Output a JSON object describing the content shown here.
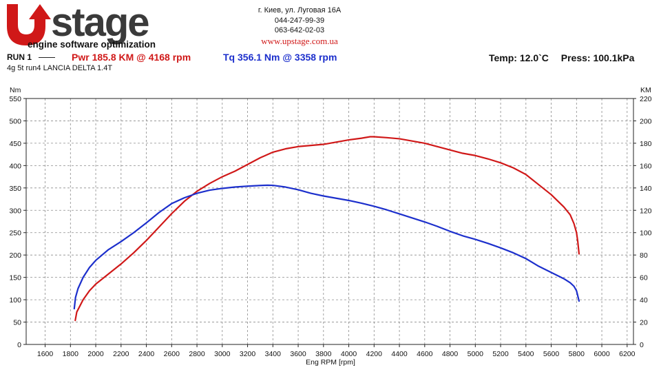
{
  "header": {
    "logo_text": "UPstage",
    "logo_tagline": "engine software optimization",
    "address": "г. Киев, ул. Луговая 16А",
    "phone1": "044-247-99-39",
    "phone2": "063-642-02-03",
    "website": "www.upstage.com.ua"
  },
  "run": {
    "label": "RUN 1",
    "power_summary": "Pwr  185.8 KM @ 4168 rpm",
    "torque_summary": "Tq 356.1 Nm @ 3358 rpm",
    "temp": "Temp: 12.0`C",
    "press": "Press: 100.1kPa",
    "subtitle": "4g 5t run4 LANCIA DELTA 1.4T"
  },
  "colors": {
    "power": "#d01818",
    "torque": "#1c2fcc",
    "grid": "#8a8a8a",
    "axis_text": "#111111"
  },
  "chart_data": {
    "type": "line",
    "title": "",
    "xlabel": "Eng RPM [rpm]",
    "ylabel_left": "Nm",
    "ylabel_right": "KM",
    "xlim": [
      1450,
      6250
    ],
    "ylim_left": [
      0,
      550
    ],
    "ylim_right": [
      0,
      220
    ],
    "x_ticks": [
      "1600",
      "1800",
      "2000",
      "2200",
      "2400",
      "2600",
      "2800",
      "3000",
      "3200",
      "3400",
      "3600",
      "3800",
      "4000",
      "4200",
      "4400",
      "4600",
      "4800",
      "5000",
      "5200",
      "5400",
      "5600",
      "5800",
      "6000",
      "6200"
    ],
    "y_ticks_left": [
      "0",
      "50",
      "100",
      "150",
      "200",
      "250",
      "300",
      "350",
      "400",
      "450",
      "500",
      "550"
    ],
    "y_ticks_right": [
      "0",
      "20",
      "40",
      "60",
      "80",
      "100",
      "120",
      "140",
      "160",
      "180",
      "200",
      "220"
    ],
    "grid": true,
    "series": [
      {
        "name": "Pwr",
        "axis": "right",
        "x": [
          1838,
          1850,
          1900,
          1950,
          2000,
          2100,
          2200,
          2300,
          2400,
          2500,
          2600,
          2700,
          2800,
          2900,
          3000,
          3100,
          3200,
          3300,
          3400,
          3500,
          3600,
          3700,
          3800,
          3900,
          4000,
          4100,
          4168,
          4200,
          4300,
          4400,
          4500,
          4600,
          4700,
          4800,
          4900,
          5000,
          5100,
          5200,
          5300,
          5400,
          5500,
          5600,
          5700,
          5750,
          5780,
          5800,
          5810,
          5820
        ],
        "values": [
          21.5,
          29,
          40,
          48,
          54,
          63,
          72,
          82,
          93,
          105,
          117,
          128,
          137,
          144,
          150,
          155,
          161,
          167,
          172,
          175,
          177,
          178,
          179,
          181,
          183,
          184.5,
          185.8,
          185.8,
          185.0,
          184,
          182,
          180,
          177,
          174,
          171,
          169,
          166,
          162.5,
          158,
          152,
          143,
          134,
          123,
          116,
          108,
          100,
          92,
          81
        ]
      },
      {
        "name": "Tq",
        "axis": "left",
        "x": [
          1830,
          1840,
          1860,
          1900,
          1950,
          2000,
          2100,
          2200,
          2300,
          2400,
          2500,
          2600,
          2700,
          2800,
          2900,
          3000,
          3100,
          3200,
          3300,
          3358,
          3400,
          3500,
          3600,
          3700,
          3800,
          3900,
          4000,
          4100,
          4200,
          4300,
          4400,
          4500,
          4600,
          4700,
          4800,
          4900,
          5000,
          5100,
          5200,
          5300,
          5400,
          5500,
          5600,
          5700,
          5750,
          5780,
          5800,
          5820
        ],
        "values": [
          80,
          105,
          125,
          150,
          172,
          188,
          212,
          230,
          250,
          272,
          295,
          315,
          328,
          338,
          345,
          349,
          352,
          354,
          355.5,
          356.1,
          355.8,
          352,
          346,
          338,
          332,
          327,
          322,
          316,
          309,
          301,
          292,
          283,
          274,
          264,
          253,
          243,
          235,
          226,
          216,
          205,
          192,
          175,
          161,
          147,
          138,
          130,
          120,
          97
        ]
      }
    ]
  }
}
